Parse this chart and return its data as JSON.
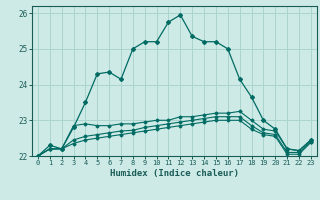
{
  "xlabel": "Humidex (Indice chaleur)",
  "xlim": [
    -0.5,
    23.5
  ],
  "ylim": [
    22.0,
    26.2
  ],
  "yticks": [
    22,
    23,
    24,
    25,
    26
  ],
  "xticks": [
    0,
    1,
    2,
    3,
    4,
    5,
    6,
    7,
    8,
    9,
    10,
    11,
    12,
    13,
    14,
    15,
    16,
    17,
    18,
    19,
    20,
    21,
    22,
    23
  ],
  "bg_color": "#cdeae6",
  "grid_color": "#aad4ce",
  "line_color": "#006b63",
  "font_color": "#1a5c58",
  "curves": [
    [
      22.0,
      22.3,
      22.2,
      22.8,
      23.5,
      24.3,
      24.35,
      24.15,
      25.0,
      25.2,
      25.2,
      25.75,
      25.95,
      25.35,
      25.2,
      25.2,
      25.0,
      24.15,
      23.65,
      23.0,
      22.75,
      22.2,
      22.15,
      22.45
    ],
    [
      22.0,
      22.2,
      22.2,
      22.85,
      22.9,
      22.85,
      22.85,
      22.9,
      22.9,
      22.95,
      23.0,
      23.0,
      23.1,
      23.1,
      23.15,
      23.2,
      23.2,
      23.25,
      23.0,
      22.75,
      22.7,
      22.2,
      22.15,
      22.45
    ],
    [
      22.0,
      22.2,
      22.2,
      22.45,
      22.55,
      22.6,
      22.65,
      22.7,
      22.72,
      22.8,
      22.85,
      22.9,
      22.95,
      23.0,
      23.05,
      23.1,
      23.1,
      23.1,
      22.85,
      22.65,
      22.6,
      22.1,
      22.1,
      22.4
    ],
    [
      22.0,
      22.2,
      22.2,
      22.35,
      22.45,
      22.5,
      22.55,
      22.6,
      22.65,
      22.7,
      22.75,
      22.8,
      22.85,
      22.9,
      22.95,
      23.0,
      23.0,
      23.0,
      22.75,
      22.6,
      22.55,
      22.05,
      22.05,
      22.38
    ]
  ]
}
